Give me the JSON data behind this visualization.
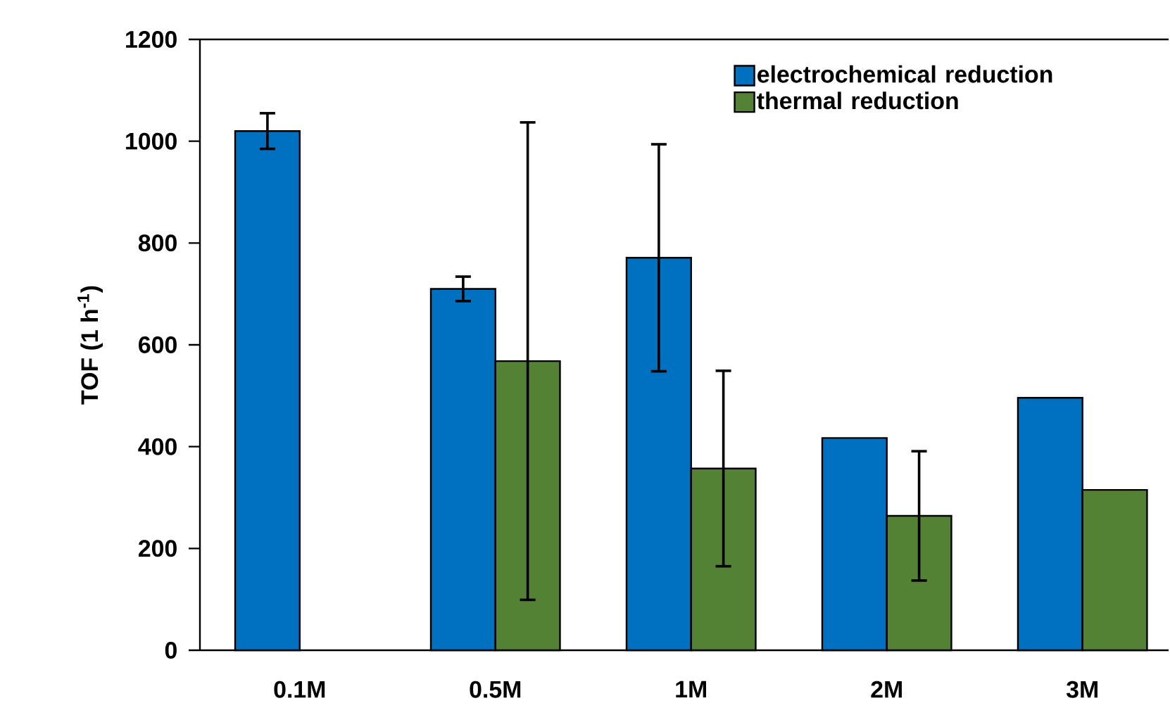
{
  "chart_data": {
    "type": "bar",
    "ylabel": "TOF (1 h$^{-1}$)",
    "categories": [
      "0.1M",
      "0.5M",
      "1M",
      "2M",
      "3M"
    ],
    "series": [
      {
        "name": "electrochemical reduction",
        "color": "#0070c0",
        "values": [
          1020,
          710,
          771,
          417,
          496
        ],
        "errors": [
          35,
          24,
          223,
          null,
          null
        ]
      },
      {
        "name": "thermal reduction",
        "color": "#548235",
        "values": [
          null,
          568,
          357,
          264,
          315
        ],
        "errors": [
          null,
          469,
          192,
          127,
          null
        ]
      }
    ],
    "ylim": [
      0,
      1200
    ],
    "yticks": [
      0,
      200,
      400,
      600,
      800,
      1000,
      1200
    ],
    "grid": false,
    "legend": "top right"
  }
}
